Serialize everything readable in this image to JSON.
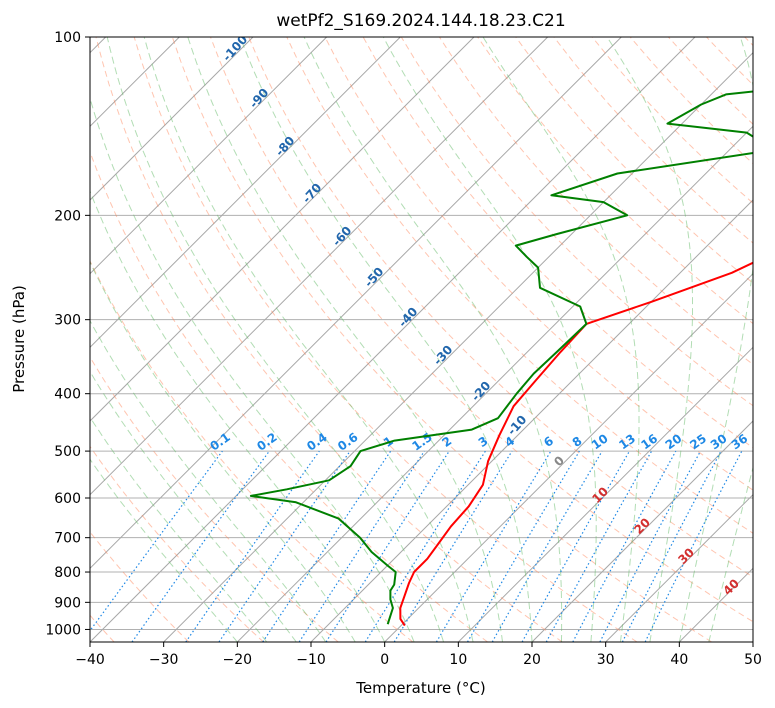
{
  "chart_data": {
    "type": "line",
    "chart_kind": "skew-t log-p",
    "title": "wetPf2_S169.2024.144.18.23.C21",
    "xlabel": "Temperature (°C)",
    "ylabel": "Pressure (hPa)",
    "xlim": [
      -40,
      50
    ],
    "ylim": [
      1050,
      100
    ],
    "y_scale": "log",
    "grid": true,
    "x_ticks": [
      -40,
      -30,
      -20,
      -10,
      0,
      10,
      20,
      30,
      40,
      50
    ],
    "y_ticks": [
      100,
      200,
      300,
      400,
      500,
      600,
      700,
      800,
      900,
      1000
    ],
    "colors": {
      "temperature": "#ff0000",
      "dewpoint": "#008000",
      "dry_adiabat": "#ff7f50",
      "moist_adiabat": "#66bb6a",
      "mixing_ratio": "#1e88e5",
      "isotherm": "#999999"
    },
    "series": [
      {
        "key": "temperature",
        "points": [
          [
            0.5,
            985
          ],
          [
            -1,
            960
          ],
          [
            -2.5,
            920
          ],
          [
            -3.5,
            880
          ],
          [
            -4.7,
            835
          ],
          [
            -5.5,
            800
          ],
          [
            -5.5,
            760
          ],
          [
            -6,
            720
          ],
          [
            -6.7,
            670
          ],
          [
            -7,
            620
          ],
          [
            -8,
            570
          ],
          [
            -10.5,
            520
          ],
          [
            -12.5,
            470
          ],
          [
            -14.5,
            420
          ],
          [
            -15,
            380
          ],
          [
            -15.5,
            340
          ],
          [
            -15.8,
            305
          ],
          [
            -10,
            280
          ],
          [
            -3,
            250
          ],
          [
            2,
            220
          ],
          [
            6,
            200
          ],
          [
            12,
            175
          ],
          [
            17,
            155
          ],
          [
            22,
            138
          ],
          [
            25,
            125
          ],
          [
            28,
            110
          ],
          [
            30,
            100
          ]
        ]
      },
      {
        "key": "dewpoint",
        "points": [
          [
            -2,
            980
          ],
          [
            -3.5,
            920
          ],
          [
            -5,
            890
          ],
          [
            -6.2,
            860
          ],
          [
            -6.5,
            840
          ],
          [
            -8,
            800
          ],
          [
            -10,
            780
          ],
          [
            -14,
            740
          ],
          [
            -17.5,
            700
          ],
          [
            -23,
            650
          ],
          [
            -31,
            610
          ],
          [
            -38,
            595
          ],
          [
            -34,
            580
          ],
          [
            -29.5,
            560
          ],
          [
            -28.5,
            530
          ],
          [
            -29.2,
            500
          ],
          [
            -26,
            480
          ],
          [
            -17,
            460
          ],
          [
            -15,
            440
          ],
          [
            -15.8,
            400
          ],
          [
            -16.2,
            370
          ],
          [
            -16,
            340
          ],
          [
            -15.8,
            305
          ],
          [
            -19,
            285
          ],
          [
            -27,
            265
          ],
          [
            -30,
            245
          ],
          [
            -33,
            235
          ],
          [
            -36,
            225
          ],
          [
            -32,
            215
          ],
          [
            -25,
            200
          ],
          [
            -30,
            190
          ],
          [
            -38,
            185
          ],
          [
            -32,
            170
          ],
          [
            -14,
            155
          ],
          [
            -20,
            145
          ],
          [
            -32,
            140
          ],
          [
            -30,
            130
          ],
          [
            -28,
            125
          ],
          [
            -16,
            120
          ],
          [
            -5,
            115
          ],
          [
            -1,
            105
          ],
          [
            0,
            100
          ]
        ]
      }
    ],
    "mixing_ratio_labels": [
      "0.1",
      "0.2",
      "0.4",
      "0.6",
      "1",
      "1.5",
      "2",
      "3",
      "4",
      "6",
      "8",
      "10",
      "13",
      "16",
      "20",
      "25",
      "30",
      "36"
    ],
    "dry_adiabat_labels": [
      "-100",
      "-90",
      "-80",
      "-70",
      "-60",
      "-50",
      "-40",
      "-30",
      "-20",
      "-10"
    ],
    "moist_adiabat_labels": [
      "0",
      "10",
      "20",
      "30",
      "40"
    ]
  }
}
